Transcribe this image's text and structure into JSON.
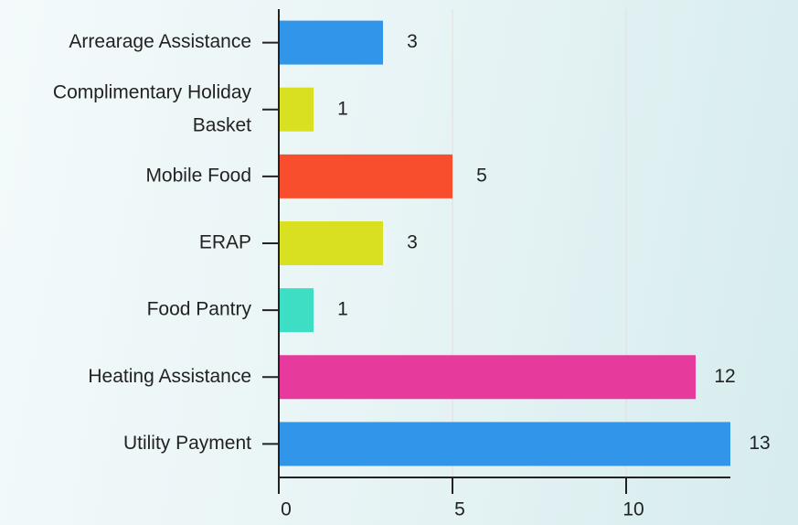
{
  "chart_data": {
    "type": "hbar",
    "categories": [
      "Arrearage Assistance",
      "Complimentary Holiday Basket",
      "Mobile Food",
      "ERAP",
      "Food Pantry",
      "Heating Assistance",
      "Utility Payment"
    ],
    "values": [
      3,
      1,
      5,
      3,
      1,
      12,
      13
    ],
    "colors": [
      "#3196e9",
      "#d8e021",
      "#f94e2e",
      "#d8e021",
      "#3ddec4",
      "#e63b9c",
      "#3196e9"
    ],
    "xlim": [
      0,
      13
    ],
    "xticks": [
      0,
      5,
      10
    ],
    "grid": true
  }
}
